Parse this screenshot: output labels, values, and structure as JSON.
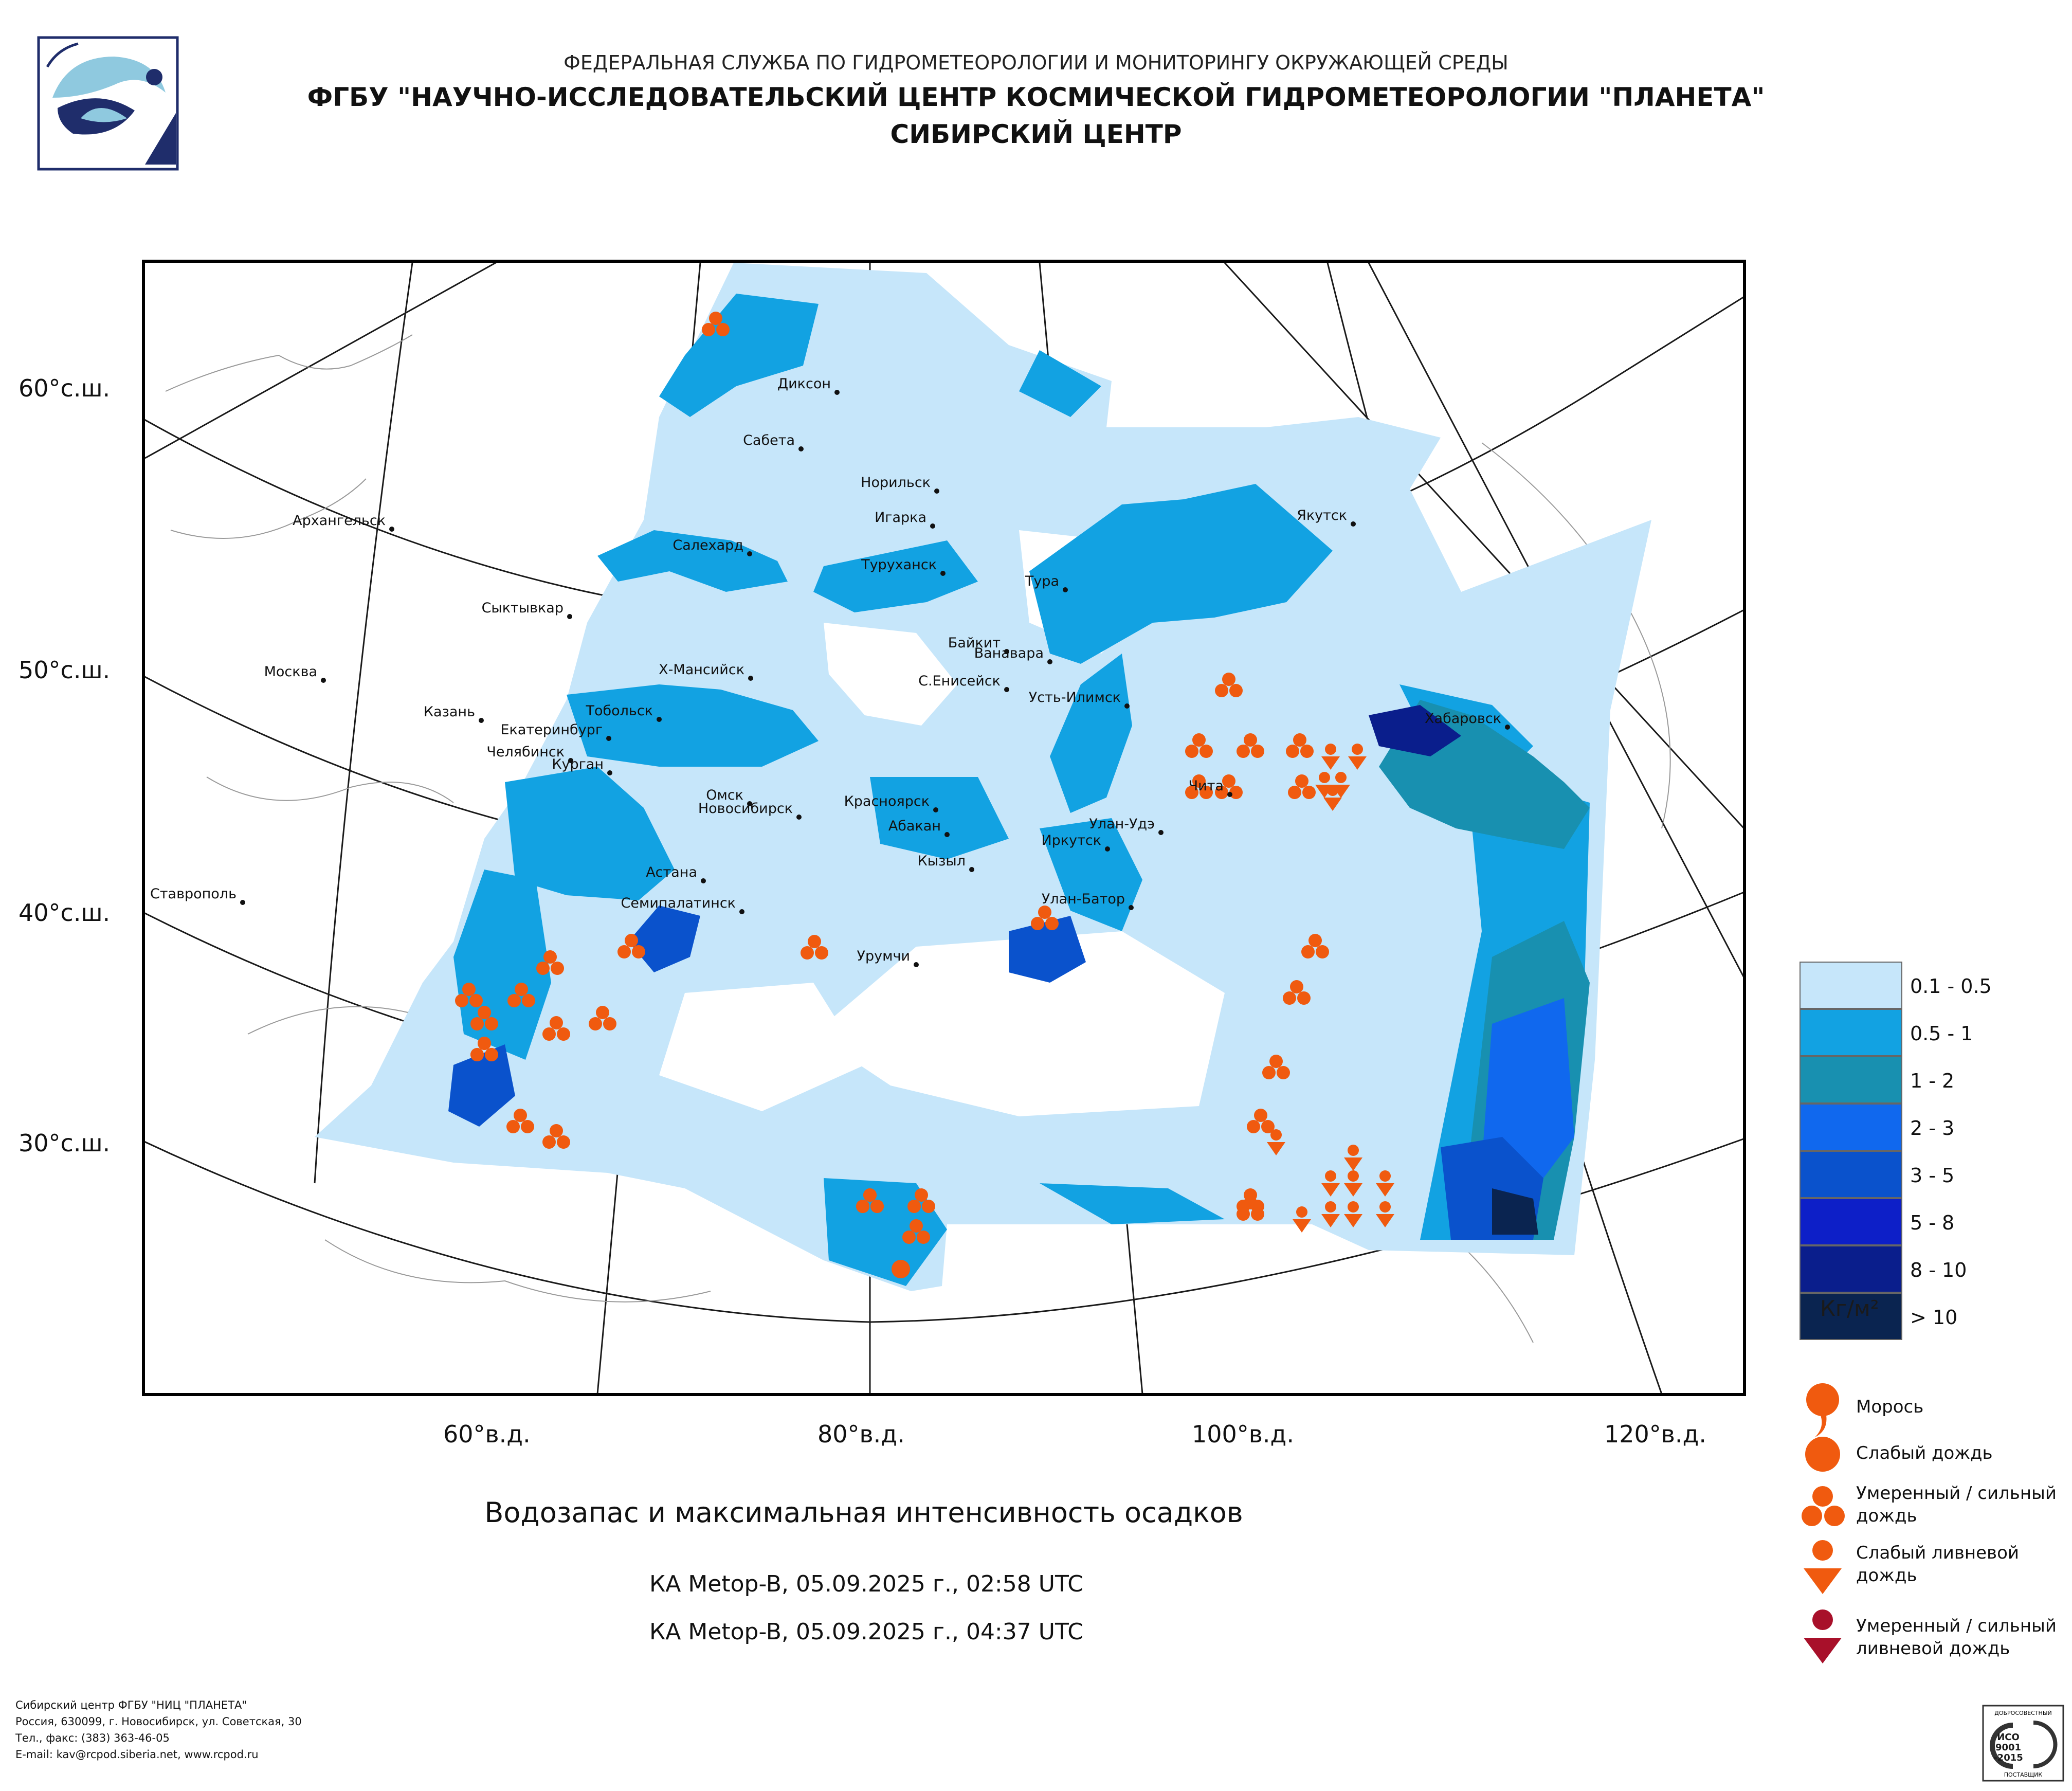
{
  "header": {
    "agency": "ФЕДЕРАЛЬНАЯ СЛУЖБА ПО ГИДРОМЕТЕОРОЛОГИИ И МОНИТОРИНГУ ОКРУЖАЮЩЕЙ СРЕДЫ",
    "institute": "ФГБУ \"НАУЧНО-ИССЛЕДОВАТЕЛЬСКИЙ ЦЕНТР КОСМИЧЕСКОЙ ГИДРОМЕТЕОРОЛОГИИ \"ПЛАНЕТА\"",
    "center": "СИБИРСКИЙ ЦЕНТР"
  },
  "map": {
    "lat_labels": [
      "60°с.ш.",
      "50°с.ш.",
      "40°с.ш.",
      "30°с.ш."
    ],
    "lon_labels": [
      "60°в.д.",
      "80°в.д.",
      "100°в.д.",
      "120°в.д."
    ],
    "cities": [
      "Диксон",
      "Сабета",
      "Норильск",
      "Игарка",
      "Салехард",
      "Туруханск",
      "Архангельск",
      "Якутск",
      "Тура",
      "Сыктывкар",
      "Байкит",
      "Ванавара",
      "Москва",
      "Х-Мансийск",
      "С.Енисейск",
      "Усть-Илимск",
      "Казань",
      "Тобольск",
      "Екатеринбург",
      "Хабаровск",
      "Челябинск",
      "Курган",
      "Чита",
      "Омск",
      "Новосибирск",
      "Красноярск",
      "Абакан",
      "Улан-Удэ",
      "Иркутск",
      "Кызыл",
      "Астана",
      "Ставрополь",
      "Семипалатинск",
      "Улан-Батор",
      "Урумчи"
    ]
  },
  "legend": {
    "classes": [
      {
        "label": "0.1 - 0.5",
        "color": "#c6e6fa"
      },
      {
        "label": "0.5 - 1",
        "color": "#12a2e2"
      },
      {
        "label": "1 - 2",
        "color": "#1890b0"
      },
      {
        "label": "2 - 3",
        "color": "#1068ee"
      },
      {
        "label": "3 - 5",
        "color": "#0a52cc"
      },
      {
        "label": "5 - 8",
        "color": "#0d1fc8"
      },
      {
        "label": "8 - 10",
        "color": "#0a1e8c"
      },
      {
        "label": "> 10",
        "color": "#0a2450"
      }
    ],
    "units": "Кг/м²",
    "symbols": [
      {
        "label": "Морось",
        "icon": "drizzle-icon"
      },
      {
        "label": "Слабый дождь",
        "icon": "light-rain-icon"
      },
      {
        "label": "Умеренный / сильный дождь",
        "icon": "moderate-rain-icon"
      },
      {
        "label": "Слабый ливневой дождь",
        "icon": "light-shower-icon"
      },
      {
        "label": "Умеренный / сильный ливневой дождь",
        "icon": "heavy-shower-icon"
      }
    ],
    "marker_color": "#f05a0f",
    "heavy_marker_color": "#a8102a"
  },
  "caption": "Водозапас и максимальная интенсивность осадков",
  "satellite_passes": [
    "КА Metop-B, 05.09.2025 г., 02:58 UTC",
    "КА Metop-B, 05.09.2025 г., 04:37 UTC"
  ],
  "footer": [
    "Сибирский центр ФГБУ \"НИЦ \"ПЛАНЕТА\"",
    "Россия, 630099, г. Новосибирск, ул. Советская, 30",
    "Тел., факс: (383) 363-46-05",
    "E-mail: kav@rcpod.siberia.net, www.rcpod.ru"
  ],
  "badge": {
    "top": "ДОБРОСОВЕСТНЫЙ",
    "main": "ИСО 9001 -2015",
    "bottom": "ПОСТАВЩИК"
  }
}
